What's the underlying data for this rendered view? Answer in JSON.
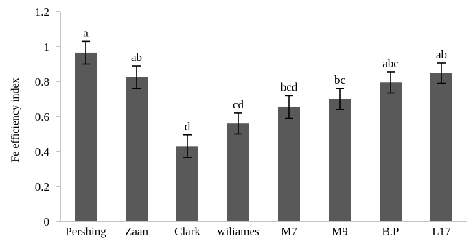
{
  "chart_data": {
    "type": "bar",
    "title": "",
    "xlabel": "",
    "ylabel": "Fe efficiency index",
    "ylim": [
      0,
      1.2
    ],
    "yticks": [
      0,
      0.2,
      0.4,
      0.6,
      0.8,
      1,
      1.2
    ],
    "ytick_labels": [
      "0",
      "0.2",
      "0.4",
      "0.6",
      "0.8",
      "1",
      "1.2"
    ],
    "grid": false,
    "bar_color": "#595959",
    "categories": [
      "Pershing",
      "Zaan",
      "Clark",
      "wiliames",
      "M7",
      "M9",
      "B.P",
      "L17"
    ],
    "values": [
      0.965,
      0.825,
      0.43,
      0.56,
      0.655,
      0.7,
      0.795,
      0.848
    ],
    "errors": [
      0.065,
      0.065,
      0.065,
      0.06,
      0.065,
      0.06,
      0.06,
      0.058
    ],
    "significance_labels": [
      "a",
      "ab",
      "d",
      "cd",
      "bcd",
      "bc",
      "abc",
      "ab"
    ]
  }
}
